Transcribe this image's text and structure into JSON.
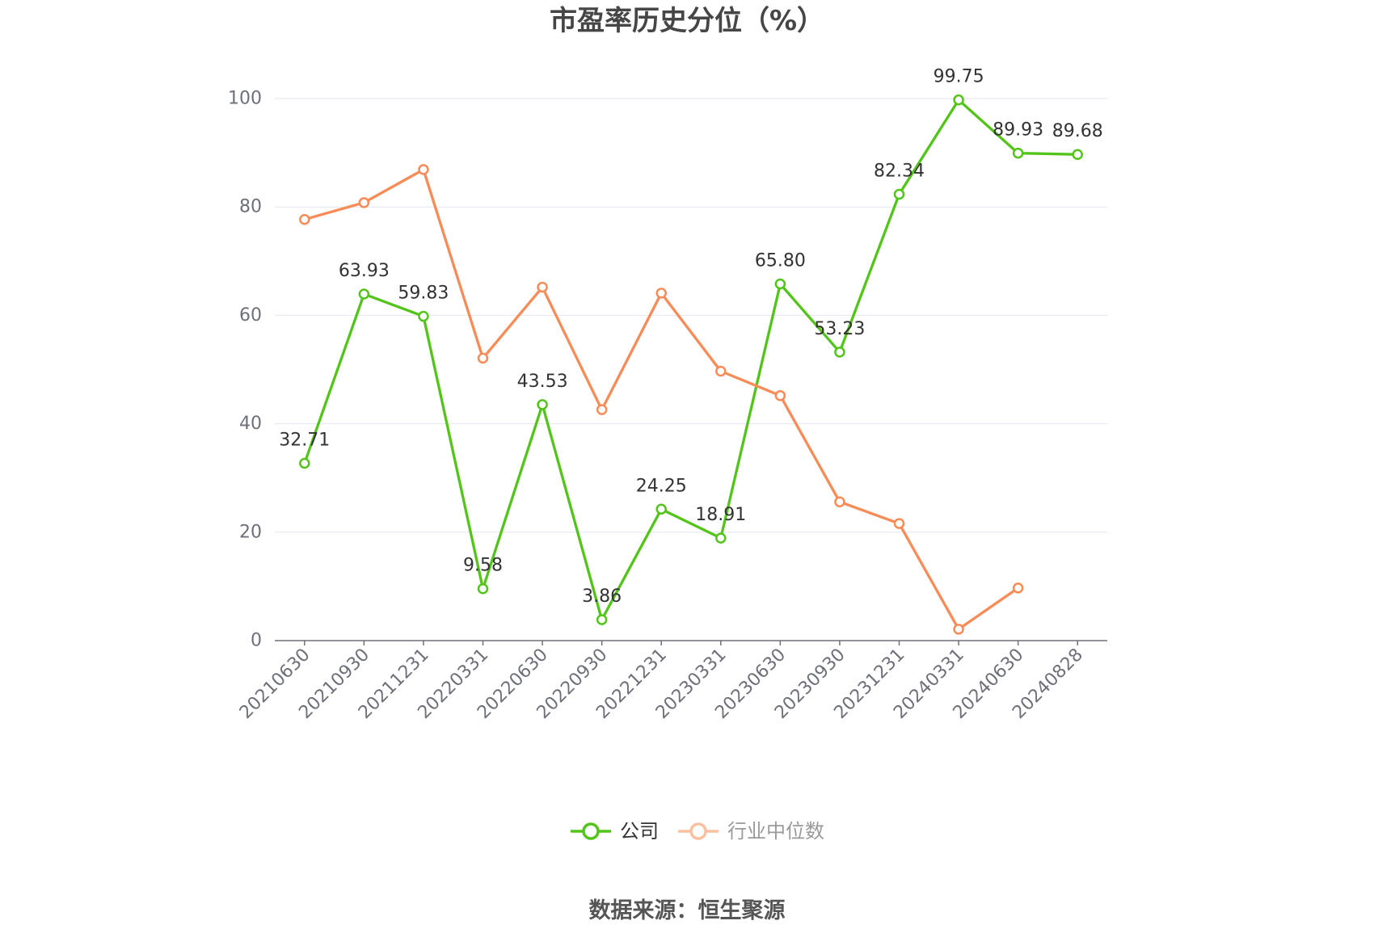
{
  "source": "数据来源：恒生聚源",
  "chart_data": {
    "type": "line",
    "title": "市盈率历史分位（%）",
    "categories": [
      "20210630",
      "20210930",
      "20211231",
      "20220331",
      "20220630",
      "20220930",
      "20221231",
      "20230331",
      "20230630",
      "20230930",
      "20231231",
      "20240331",
      "20240630",
      "20240828"
    ],
    "series": [
      {
        "name": "公司",
        "color": "#52C41A",
        "data_labels": true,
        "values": [
          32.71,
          63.93,
          59.83,
          9.58,
          43.53,
          3.86,
          24.25,
          18.91,
          65.8,
          53.23,
          82.34,
          99.75,
          89.93,
          89.68
        ]
      },
      {
        "name": "行业中位数",
        "color": "#F98B57",
        "data_labels": false,
        "values": [
          77.7,
          80.8,
          86.9,
          52.1,
          65.2,
          42.6,
          64.1,
          49.7,
          45.2,
          25.6,
          21.6,
          2.1,
          9.7,
          null
        ]
      }
    ],
    "ylim": [
      0,
      100
    ],
    "yticks": [
      0,
      20,
      40,
      60,
      80,
      100
    ],
    "grid": true,
    "legend": "bottom"
  }
}
